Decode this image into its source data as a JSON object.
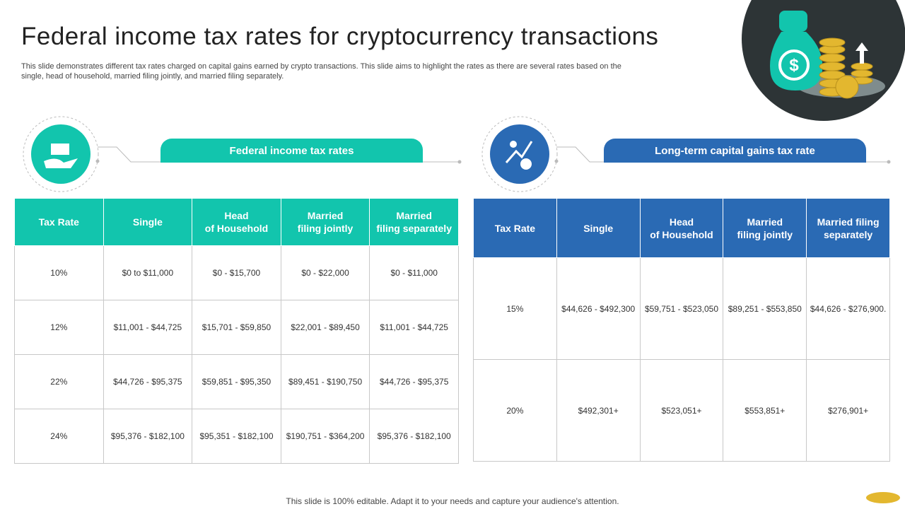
{
  "title": "Federal income tax rates for cryptocurrency transactions",
  "description": "This slide demonstrates different tax rates charged on capital gains earned by crypto transactions. This slide aims to highlight the rates as there are several rates based on the single, head of household, married filing jointly, and married filing separately.",
  "tables": [
    {
      "heading": "Federal income tax rates",
      "columns": [
        [
          "Tax Rate"
        ],
        [
          "Single"
        ],
        [
          "Head",
          "of Household"
        ],
        [
          "Married",
          "filing jointly"
        ],
        [
          "Married",
          "filing separately"
        ]
      ],
      "rows": [
        [
          "10%",
          "$0 to $11,000",
          "$0 - $15,700",
          "$0 - $22,000",
          "$0 - $11,000"
        ],
        [
          "12%",
          "$11,001 - $44,725",
          "$15,701 - $59,850",
          "$22,001 - $89,450",
          "$11,001 - $44,725"
        ],
        [
          "22%",
          "$44,726 - $95,375",
          "$59,851 - $95,350",
          "$89,451 - $190,750",
          "$44,726 - $95,375"
        ],
        [
          "24%",
          "$95,376 - $182,100",
          "$95,351 - $182,100",
          "$190,751 - $364,200",
          "$95,376 - $182,100"
        ]
      ]
    },
    {
      "heading": "Long-term capital gains tax rate",
      "columns": [
        [
          "Tax Rate"
        ],
        [
          "Single"
        ],
        [
          "Head",
          "of Household"
        ],
        [
          "Married",
          "filing jointly"
        ],
        [
          "Married filing",
          "separately"
        ]
      ],
      "rows": [
        [
          "15%",
          "$44,626 - $492,300",
          "$59,751 - $523,050",
          "$89,251 - $553,850",
          "$44,626 - $276,900."
        ],
        [
          "20%",
          "$492,301+",
          "$523,051+",
          "$553,851+",
          "$276,901+"
        ]
      ]
    }
  ],
  "footer": "This slide is 100% editable. Adapt it to your needs and capture your audience's attention."
}
